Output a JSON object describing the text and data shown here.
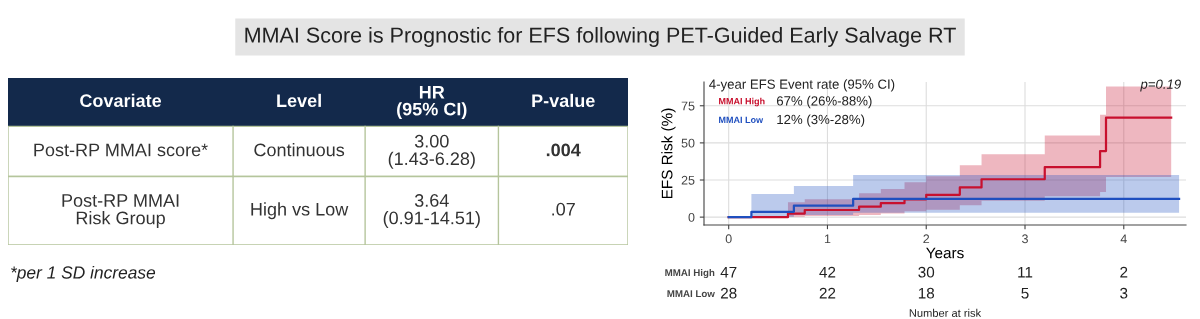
{
  "chart_data": [
    {
      "type": "other",
      "title": "MMAI Score is Prognostic for EFS following PET-Guided Early Salvage RT",
      "categories": [
        "Covariate",
        "Level",
        "HR\n(95% CI)",
        "P-value"
      ],
      "cell_labels": [
        [
          "Post-RP MMAI score*",
          "Continuous",
          "3.00\n(1.43-6.28)",
          ".004"
        ],
        [
          "Post-RP MMAI\nRisk Group",
          "High vs Low",
          "3.64\n(0.91-14.51)",
          ".07"
        ]
      ],
      "annotations": [
        "*per 1 SD increase"
      ]
    },
    {
      "type": "step",
      "legend_title": "4-year EFS Event rate (95% CI)",
      "xlabel": "Years",
      "ylabel": "EFS Risk (%)",
      "xlim": [
        -0.25,
        4.63
      ],
      "ylim": [
        -5.3,
        91
      ],
      "xticks": [
        0,
        1,
        2,
        3,
        4
      ],
      "yticks": [
        0,
        25,
        50,
        75
      ],
      "grid": true,
      "legend": "top left",
      "annotations": [
        "67% (26%-88%)",
        "12% (3%-28%)",
        "p=0.19"
      ],
      "series": [
        {
          "name": "MMAI High",
          "color": "#c8102e",
          "x": [
            0,
            0.6,
            0.77,
            1.32,
            1.54,
            1.78,
            2.0,
            2.34,
            2.56,
            3.2,
            3.76,
            3.82,
            4.48
          ],
          "values": [
            0,
            2.4,
            4.8,
            7,
            9.4,
            12,
            15,
            20,
            25.5,
            33.6,
            44.5,
            67,
            67
          ],
          "lower": [
            0,
            0.3,
            0.7,
            1.5,
            2.5,
            4,
            5,
            8,
            11,
            14,
            17,
            27,
            27
          ],
          "upper": [
            0,
            10,
            12,
            16,
            19,
            23.5,
            27.6,
            35,
            42.3,
            55,
            69,
            88,
            88
          ]
        },
        {
          "name": "MMAI Low",
          "color": "#1f4fbf",
          "x": [
            0,
            0.23,
            0.66,
            1.26,
            4.56
          ],
          "values": [
            0,
            3.6,
            7.7,
            12.3,
            12.3
          ],
          "lower": [
            0,
            0.3,
            1.5,
            3,
            3
          ],
          "upper": [
            0,
            15.6,
            21,
            28.3,
            28.3
          ]
        }
      ]
    },
    {
      "type": "heatmap",
      "xlabel": "Number at risk",
      "categories": [
        null,
        null,
        null,
        null,
        null
      ],
      "y_categories": [
        "MMAI High",
        "MMAI Low"
      ],
      "data_labels": true,
      "cells": [
        [
          47,
          42,
          30,
          11,
          2
        ],
        [
          28,
          22,
          18,
          5,
          3
        ]
      ]
    }
  ]
}
